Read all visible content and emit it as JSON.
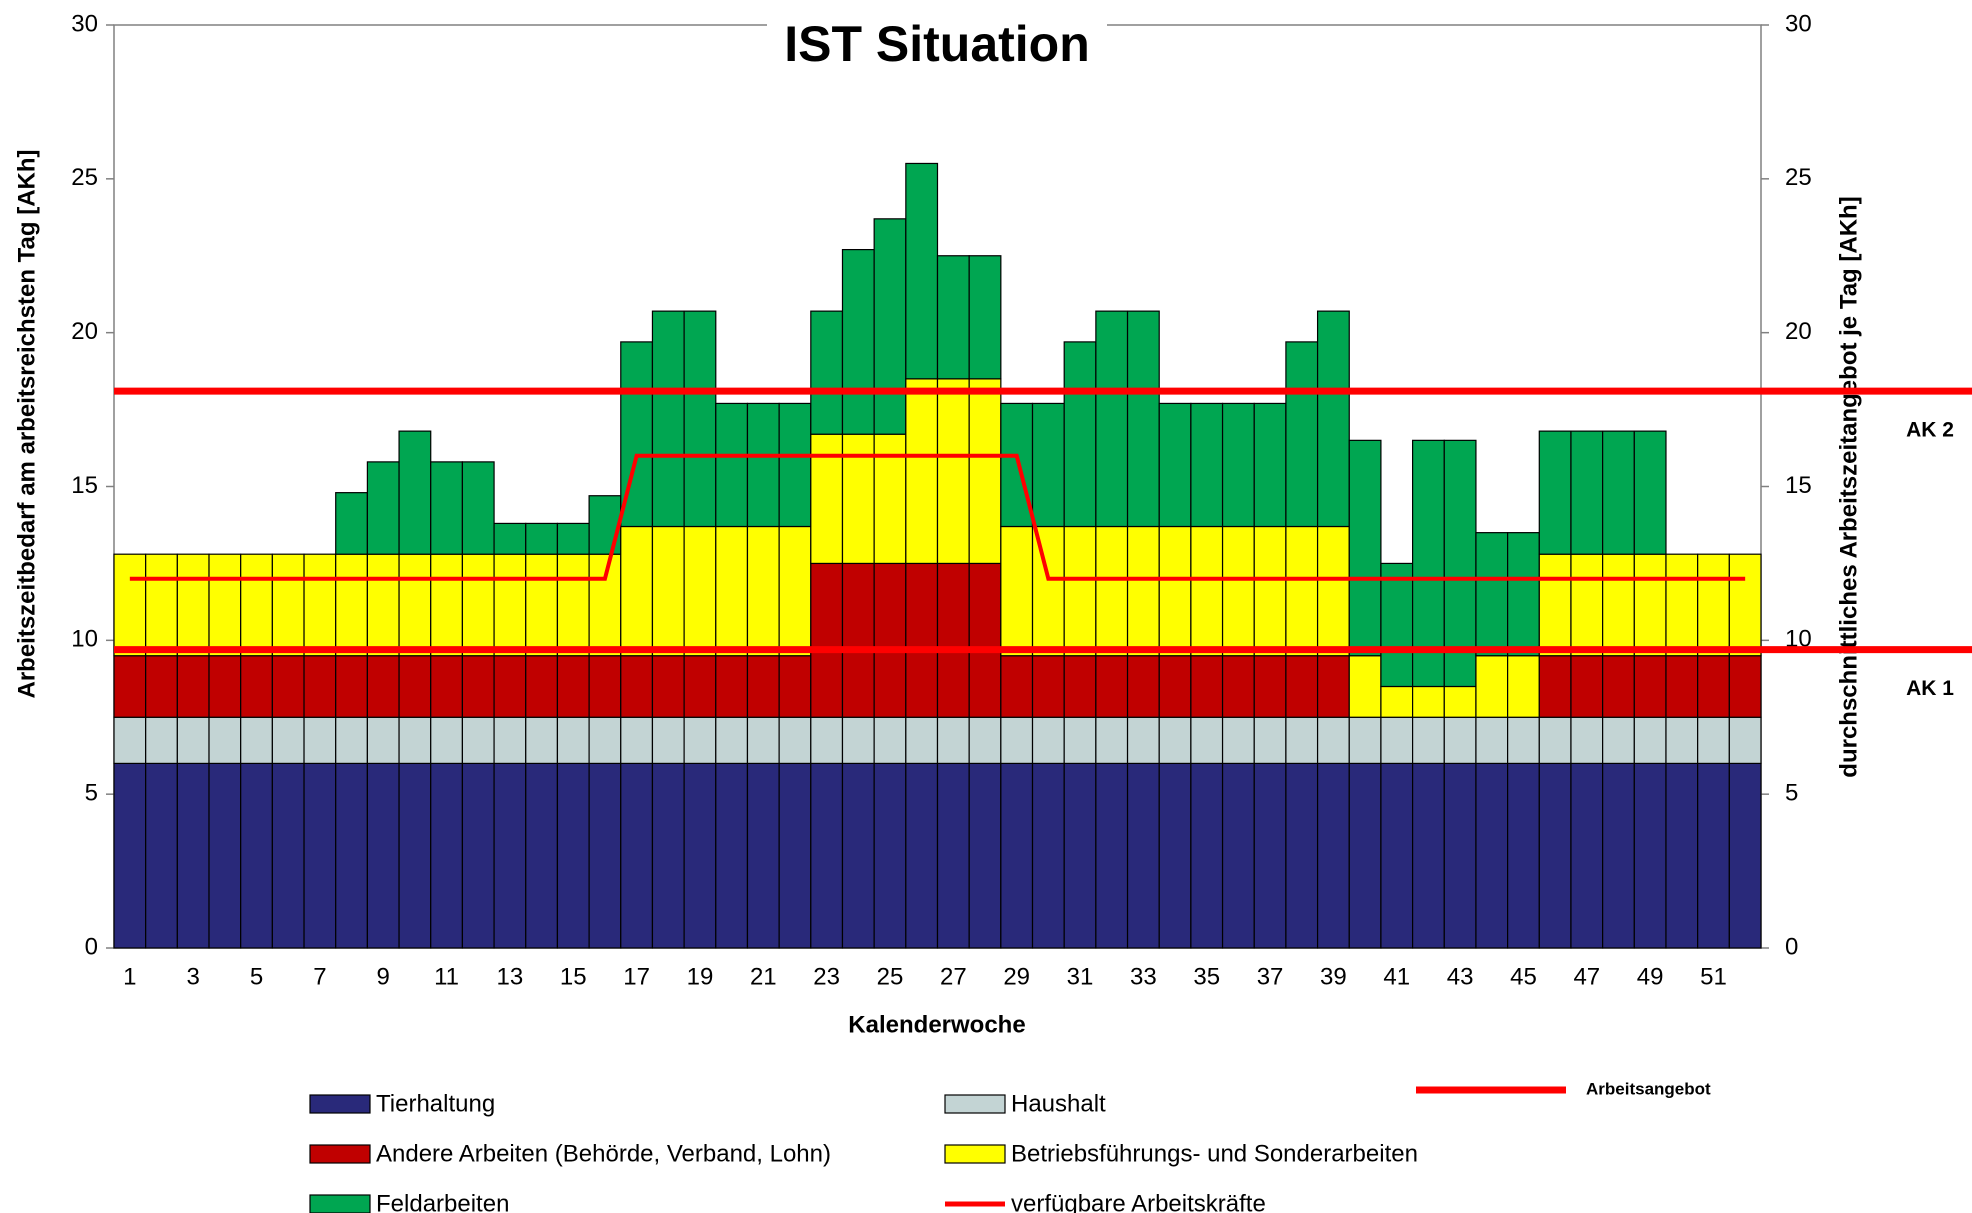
{
  "chart_data": {
    "type": "bar",
    "stacked": true,
    "title": "IST Situation",
    "x_label": "Kalenderwoche",
    "y_label": "Arbeitszeitbedarf am arbeitsreichsten Tag [AKh]",
    "y2_label": "durchschnittliches Arbeitszeitangebot je Tag [AKh]",
    "categories": [
      "1",
      null,
      "3",
      null,
      "5",
      null,
      "7",
      null,
      "9",
      null,
      "11",
      null,
      "13",
      null,
      "15",
      null,
      "17",
      null,
      "19",
      null,
      "21",
      null,
      "23",
      null,
      "25",
      null,
      "27",
      null,
      "29",
      null,
      "31",
      null,
      "33",
      null,
      "35",
      null,
      "37",
      null,
      "39",
      null,
      "41",
      null,
      "43",
      null,
      "45",
      null,
      "47",
      null,
      "49",
      null,
      "51",
      null
    ],
    "series": [
      {
        "name": "Tierhaltung",
        "color": "#29297a",
        "values": [
          6,
          6,
          6,
          6,
          6,
          6,
          6,
          6,
          6,
          6,
          6,
          6,
          6,
          6,
          6,
          6,
          6,
          6,
          6,
          6,
          6,
          6,
          6,
          6,
          6,
          6,
          6,
          6,
          6,
          6,
          6,
          6,
          6,
          6,
          6,
          6,
          6,
          6,
          6,
          6,
          6,
          6,
          6,
          6,
          6,
          6,
          6,
          6,
          6,
          6,
          6,
          6
        ]
      },
      {
        "name": "Haushalt",
        "color": "#c3d4d4",
        "values": [
          1.5,
          1.5,
          1.5,
          1.5,
          1.5,
          1.5,
          1.5,
          1.5,
          1.5,
          1.5,
          1.5,
          1.5,
          1.5,
          1.5,
          1.5,
          1.5,
          1.5,
          1.5,
          1.5,
          1.5,
          1.5,
          1.5,
          1.5,
          1.5,
          1.5,
          1.5,
          1.5,
          1.5,
          1.5,
          1.5,
          1.5,
          1.5,
          1.5,
          1.5,
          1.5,
          1.5,
          1.5,
          1.5,
          1.5,
          1.5,
          1.5,
          1.5,
          1.5,
          1.5,
          1.5,
          1.5,
          1.5,
          1.5,
          1.5,
          1.5,
          1.5,
          1.5
        ]
      },
      {
        "name": "Andere Arbeiten (Behörde, Verband, Lohn)",
        "color": "#c00000",
        "values": [
          2,
          2,
          2,
          2,
          2,
          2,
          2,
          2,
          2,
          2,
          2,
          2,
          2,
          2,
          2,
          2,
          2,
          2,
          2,
          2,
          2,
          2,
          5,
          5,
          5,
          5,
          5,
          5,
          2,
          2,
          2,
          2,
          2,
          2,
          2,
          2,
          2,
          2,
          2,
          0,
          0,
          0,
          0,
          0,
          0,
          2,
          2,
          2,
          2,
          2,
          2,
          2
        ]
      },
      {
        "name": "Betriebsführungs- und Sonderarbeiten",
        "color": "#ffff00",
        "values": [
          3.3,
          3.3,
          3.3,
          3.3,
          3.3,
          3.3,
          3.3,
          3.3,
          3.3,
          3.3,
          3.3,
          3.3,
          3.3,
          3.3,
          3.3,
          3.3,
          4.2,
          4.2,
          4.2,
          4.2,
          4.2,
          4.2,
          4.2,
          4.2,
          4.2,
          6,
          6,
          6,
          4.2,
          4.2,
          4.2,
          4.2,
          4.2,
          4.2,
          4.2,
          4.2,
          4.2,
          4.2,
          4.2,
          2,
          1,
          1,
          1,
          2,
          2,
          3.3,
          3.3,
          3.3,
          3.3,
          3.3,
          3.3,
          3.3
        ]
      },
      {
        "name": "Feldarbeiten",
        "color": "#00a651",
        "values": [
          0,
          0,
          0,
          0,
          0,
          0,
          0,
          2,
          3,
          4,
          3,
          3,
          1,
          1,
          1,
          1.9,
          6,
          7,
          7,
          4,
          4,
          4,
          4,
          6,
          7,
          7,
          4,
          4,
          4,
          4,
          6,
          7,
          7,
          4,
          4,
          4,
          4,
          6,
          7,
          7,
          4,
          8,
          8,
          4,
          4,
          4,
          4,
          4,
          4,
          0,
          0,
          0
        ]
      },
      {
        "name": "verfügbare Arbeitskräfte",
        "type": "line",
        "color": "#ff0000",
        "values": [
          12,
          12,
          12,
          12,
          12,
          12,
          12,
          12,
          12,
          12,
          12,
          12,
          12,
          12,
          12,
          12,
          16,
          16,
          16,
          16,
          16,
          16,
          16,
          16,
          16,
          16,
          16,
          16,
          16,
          12,
          12,
          12,
          12,
          12,
          12,
          12,
          12,
          12,
          12,
          12,
          12,
          12,
          12,
          12,
          12,
          12,
          12,
          12,
          12,
          12,
          12,
          12
        ]
      }
    ],
    "reference_lines": [
      {
        "label": "AK 2",
        "value": 18.1
      },
      {
        "label": "AK 1",
        "value": 9.7
      }
    ],
    "reference_legend": "Arbeitsangebot",
    "reference_color": "#ff0000",
    "ylim": [
      0,
      30
    ],
    "yticks": [
      0,
      5,
      10,
      15,
      20,
      25,
      30
    ],
    "y2lim": [
      0,
      30
    ],
    "y2ticks": [
      0,
      5,
      10,
      15,
      20,
      25,
      30
    ]
  }
}
